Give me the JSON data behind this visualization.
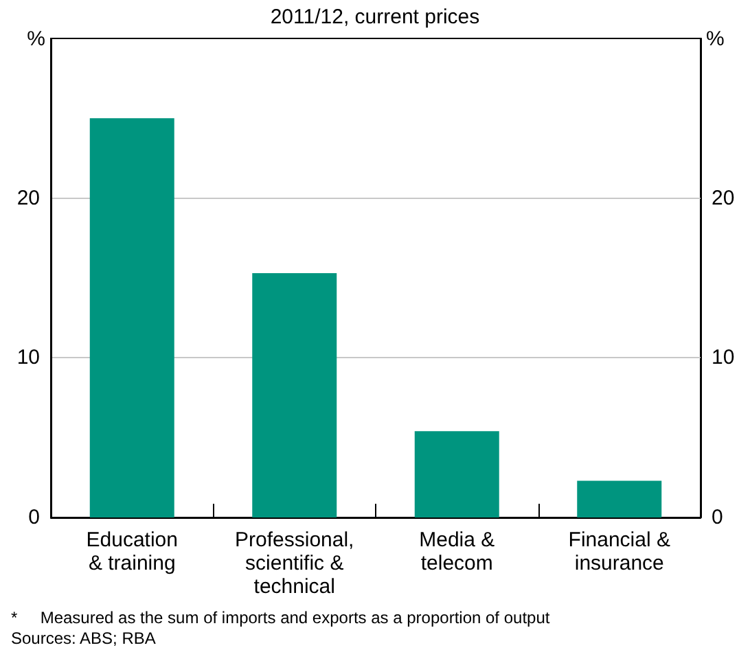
{
  "chart_data": {
    "type": "bar",
    "subtitle": "2011/12, current prices",
    "ylabel": "%",
    "y2label": "%",
    "categories": [
      "Education\n& training",
      "Professional,\nscientific &\ntechnical",
      "Media &\ntelecom",
      "Financial &\ninsurance"
    ],
    "values": [
      25,
      15.3,
      5.4,
      2.3
    ],
    "color": "#00957f",
    "ylim": [
      0,
      30
    ],
    "yticks": [
      0,
      10,
      20
    ],
    "y2lim": [
      0,
      30
    ],
    "y2ticks": [
      0,
      10,
      20
    ],
    "grid": "y",
    "annotations": [
      "*     Measured as the sum of imports and exports as a proportion of output",
      "Sources: ABS; RBA"
    ]
  }
}
